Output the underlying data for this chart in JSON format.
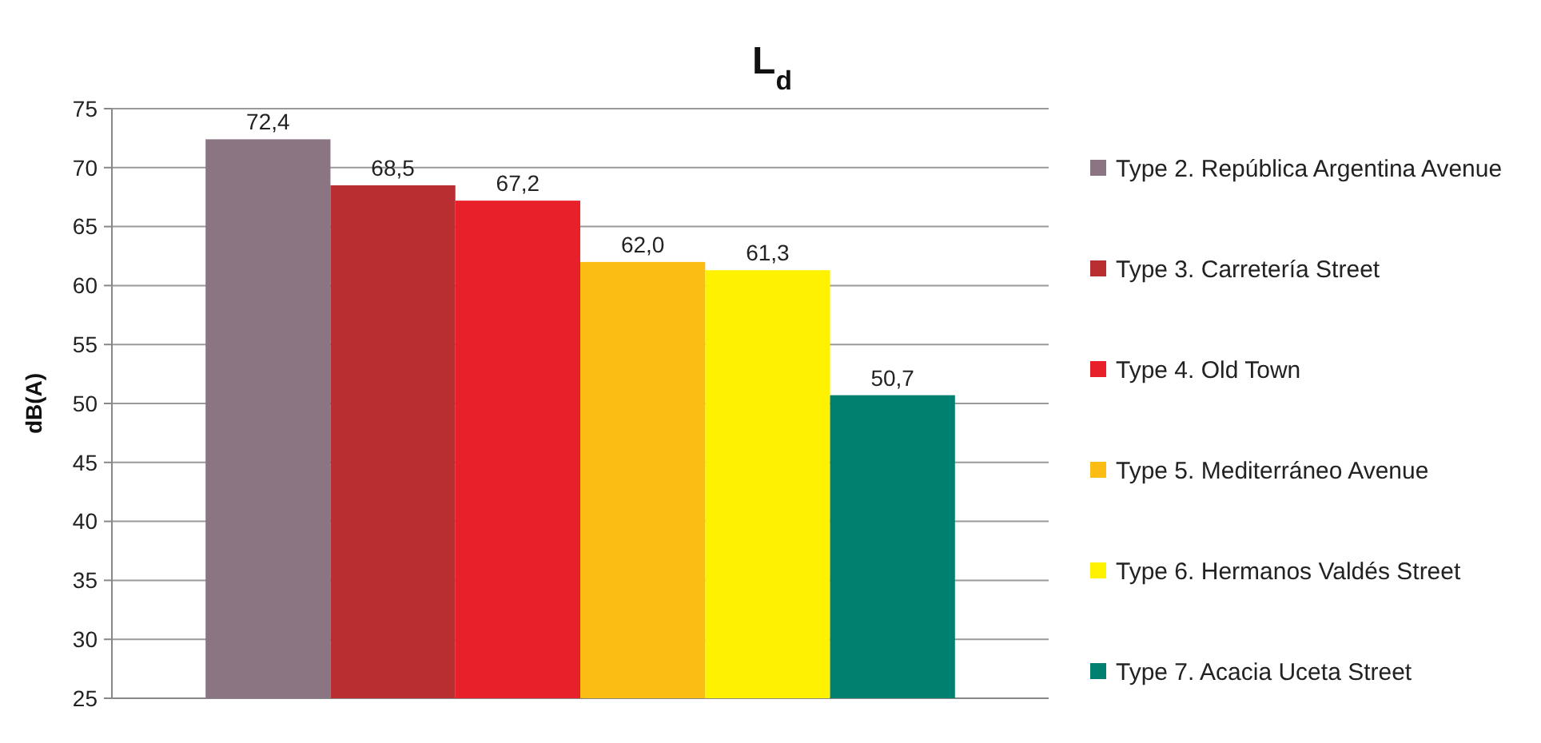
{
  "chart_data": {
    "type": "bar",
    "title": "L$_{d}$",
    "ylabel": "dB(A)",
    "categories": [
      null
    ],
    "ylim": [
      25,
      75
    ],
    "yticks": [
      25,
      30,
      35,
      40,
      45,
      50,
      55,
      60,
      65,
      70,
      75
    ],
    "grid": "y",
    "legend": "right",
    "data_labels": true,
    "series": [
      {
        "name": "Type 2. República Argentina Avenue",
        "color": "#8b7583",
        "values": [
          72.4
        ],
        "value_labels": [
          "72,4"
        ]
      },
      {
        "name": "Type 3. Carretería Street",
        "color": "#b92e30",
        "values": [
          68.5
        ],
        "value_labels": [
          "68,5"
        ]
      },
      {
        "name": "Type 4. Old Town",
        "color": "#e8202a",
        "values": [
          67.2
        ],
        "value_labels": [
          "67,2"
        ]
      },
      {
        "name": "Type 5. Mediterráneo Avenue",
        "color": "#fbbd13",
        "values": [
          62.0
        ],
        "value_labels": [
          "62,0"
        ]
      },
      {
        "name": "Type 6. Hermanos Valdés Street",
        "color": "#fff200",
        "values": [
          61.3
        ],
        "value_labels": [
          "61,3"
        ]
      },
      {
        "name": "Type 7. Acacia Uceta Street",
        "color": "#00806f",
        "values": [
          50.7
        ],
        "value_labels": [
          "50,7"
        ]
      }
    ]
  }
}
